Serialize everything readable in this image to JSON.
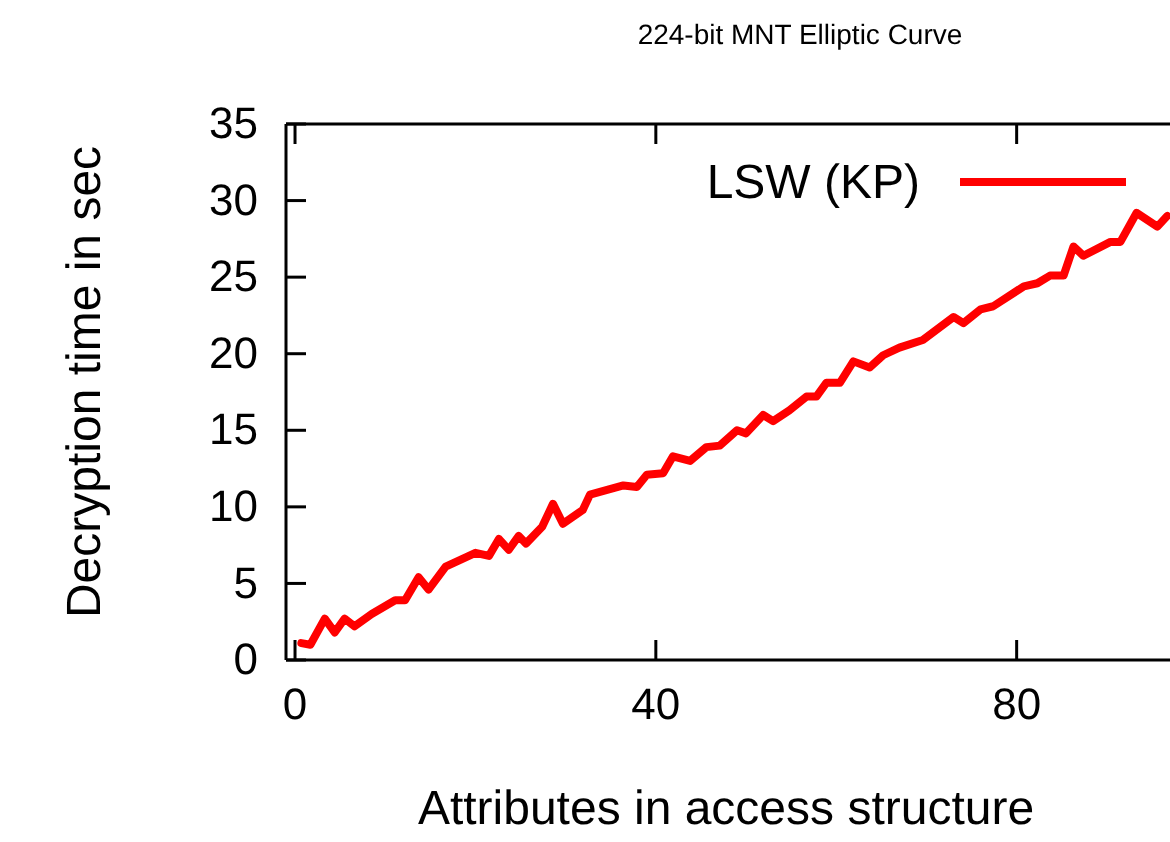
{
  "chart_data": {
    "type": "line",
    "title": "224-bit MNT Elliptic Curve",
    "xlabel": "Attributes in access structure",
    "ylabel": "Decryption time in sec",
    "xlim": [
      -1,
      97
    ],
    "xticks": [
      0,
      40,
      80
    ],
    "ylim": [
      0,
      35
    ],
    "yticks": [
      0,
      5,
      10,
      15,
      20,
      25,
      30,
      35
    ],
    "grid": false,
    "legend": "top right",
    "line_style": "solid",
    "marker": "none",
    "series": [
      {
        "name": "LSW (KP)",
        "color": "#ff0000",
        "x": [
          0.7,
          1.7,
          3.3,
          4.4,
          5.5,
          6.6,
          8.5,
          11.1,
          12.2,
          13.7,
          14.8,
          16.7,
          20,
          21.5,
          22.6,
          23.7,
          24.8,
          25.6,
          27.4,
          28.6,
          29.7,
          31.9,
          32.7,
          36.4,
          37.9,
          39,
          40.8,
          41.9,
          43.8,
          45.6,
          47.1,
          49,
          50,
          51.9,
          53,
          54.8,
          56.7,
          57.8,
          58.9,
          60.4,
          61.9,
          63.7,
          65.2,
          67,
          69.6,
          73,
          74.1,
          76,
          77.4,
          80.8,
          82.3,
          83.7,
          85.2,
          86.3,
          87.4,
          90.4,
          91.5,
          93.3,
          95.6,
          96.7
        ],
        "values": [
          1.1,
          1.0,
          2.7,
          1.8,
          2.7,
          2.2,
          3.0,
          3.9,
          3.9,
          5.4,
          4.6,
          6.1,
          7.0,
          6.8,
          7.9,
          7.2,
          8.1,
          7.6,
          8.7,
          10.2,
          8.9,
          9.8,
          10.8,
          11.4,
          11.3,
          12.1,
          12.2,
          13.3,
          13.0,
          13.9,
          14.0,
          15.0,
          14.8,
          16.0,
          15.6,
          16.3,
          17.2,
          17.2,
          18.1,
          18.1,
          19.5,
          19.1,
          19.9,
          20.4,
          20.9,
          22.4,
          22.0,
          22.9,
          23.1,
          24.4,
          24.6,
          25.1,
          25.1,
          27.0,
          26.4,
          27.3,
          27.3,
          29.2,
          28.3,
          29.0
        ]
      }
    ]
  }
}
